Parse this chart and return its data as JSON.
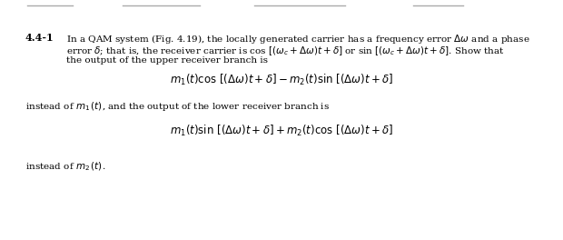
{
  "figsize": [
    6.2,
    2.64
  ],
  "dpi": 100,
  "bg_color": "#ffffff",
  "label_number": "4.4-1",
  "body_text_line1": "In a QAM system (Fig. 4.19), the locally generated carrier has a frequency error $\\Delta\\omega$ and a phase",
  "body_text_line2": "error $\\delta$; that is, the receiver carrier is cos $[(\\omega_c + \\Delta\\omega)t + \\delta]$ or sin $[(\\omega_c + \\Delta\\omega)t + \\delta]$. Show that",
  "body_text_line3": "the output of the upper receiver branch is",
  "eq1": "$m_1(t)\\cos\\,[(\\Delta\\omega)t + \\delta] - m_2(t)\\sin\\,[(\\Delta\\omega)t + \\delta]$",
  "instead1": "instead of $m_1\\,(t)$, and the output of the lower receiver branch is",
  "eq2": "$m_1(t)\\sin\\,[(\\Delta\\omega)t + \\delta] + m_2(t)\\cos\\,[(\\Delta\\omega)t + \\delta]$",
  "instead2": "instead of $m_2\\,(t)$.",
  "label_fontsize": 8.0,
  "body_fontsize": 7.5,
  "eq_fontsize": 8.5,
  "text_color": "#000000"
}
